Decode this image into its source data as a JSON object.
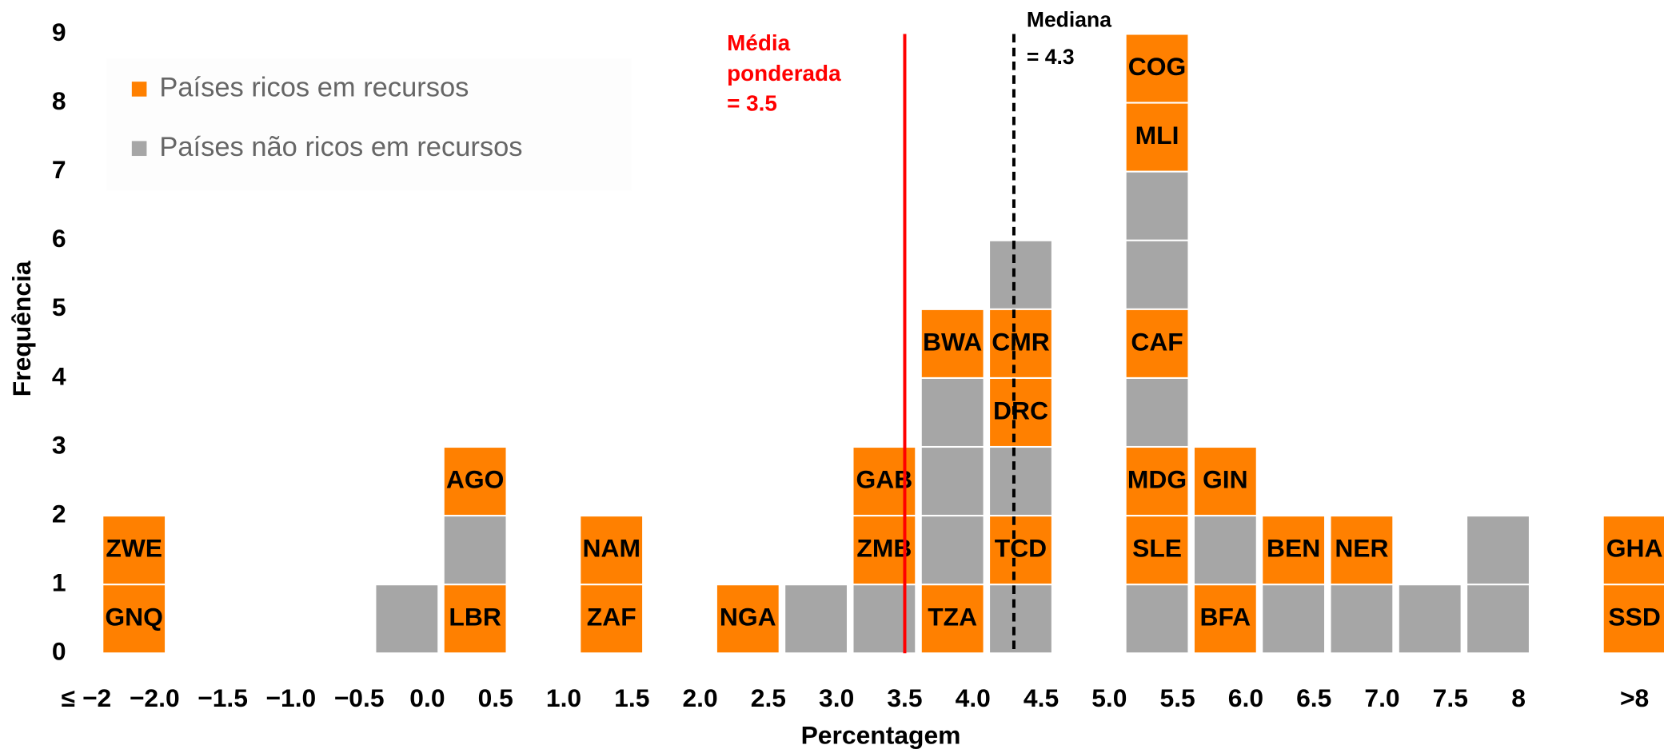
{
  "chart_data": {
    "type": "unitstack",
    "xlabel": "Percentagem",
    "ylabel": "Frequência",
    "series": [
      {
        "name": "Países ricos em recursos",
        "color": "#ff8000"
      },
      {
        "name": "Países não ricos em recursos",
        "color": "#a6a6a6"
      }
    ],
    "legend": "upper left",
    "columns": [
      {
        "x": -2.15,
        "cells": [
          {
            "series": 0,
            "label": "GNQ"
          },
          {
            "series": 0,
            "label": "ZWE"
          }
        ]
      },
      {
        "x": -0.15,
        "cells": [
          {
            "series": 1
          }
        ]
      },
      {
        "x": 0.35,
        "cells": [
          {
            "series": 0,
            "label": "LBR"
          },
          {
            "series": 1
          },
          {
            "series": 0,
            "label": "AGO"
          }
        ]
      },
      {
        "x": 1.35,
        "cells": [
          {
            "series": 0,
            "label": "ZAF"
          },
          {
            "series": 0,
            "label": "NAM"
          }
        ]
      },
      {
        "x": 2.35,
        "cells": [
          {
            "series": 0,
            "label": "NGA"
          }
        ]
      },
      {
        "x": 2.85,
        "cells": [
          {
            "series": 1
          }
        ]
      },
      {
        "x": 3.35,
        "cells": [
          {
            "series": 1
          },
          {
            "series": 0,
            "label": "ZMB"
          },
          {
            "series": 0,
            "label": "GAB"
          }
        ]
      },
      {
        "x": 3.85,
        "cells": [
          {
            "series": 0,
            "label": "TZA"
          },
          {
            "series": 1
          },
          {
            "series": 1
          },
          {
            "series": 1
          },
          {
            "series": 0,
            "label": "BWA"
          }
        ]
      },
      {
        "x": 4.35,
        "cells": [
          {
            "series": 1
          },
          {
            "series": 0,
            "label": "TCD"
          },
          {
            "series": 1
          },
          {
            "series": 0,
            "label": "DRC"
          },
          {
            "series": 0,
            "label": "CMR"
          },
          {
            "series": 1
          }
        ]
      },
      {
        "x": 5.35,
        "cells": [
          {
            "series": 1
          },
          {
            "series": 0,
            "label": "SLE"
          },
          {
            "series": 0,
            "label": "MDG"
          },
          {
            "series": 1
          },
          {
            "series": 0,
            "label": "CAF"
          },
          {
            "series": 1
          },
          {
            "series": 1
          },
          {
            "series": 0,
            "label": "MLI"
          },
          {
            "series": 0,
            "label": "COG"
          }
        ]
      },
      {
        "x": 5.85,
        "cells": [
          {
            "series": 0,
            "label": "BFA"
          },
          {
            "series": 1
          },
          {
            "series": 0,
            "label": "GIN"
          }
        ]
      },
      {
        "x": 6.35,
        "cells": [
          {
            "series": 1
          },
          {
            "series": 0,
            "label": "BEN"
          }
        ]
      },
      {
        "x": 6.85,
        "cells": [
          {
            "series": 1
          },
          {
            "series": 0,
            "label": "NER"
          }
        ]
      },
      {
        "x": 7.35,
        "cells": [
          {
            "series": 1
          }
        ]
      },
      {
        "x": 7.85,
        "cells": [
          {
            "series": 1
          },
          {
            "series": 1
          }
        ]
      },
      {
        "x": 8.85,
        "cells": [
          {
            "series": 0,
            "label": "SSD"
          },
          {
            "series": 0,
            "label": "GHA"
          }
        ]
      }
    ],
    "mean": {
      "value": 3.5,
      "label": [
        "Média",
        "ponderada",
        "= 3.5"
      ],
      "color": "#ff0000"
    },
    "median": {
      "value": 4.3,
      "label": [
        "Mediana",
        "= 4.3"
      ],
      "color": "#000000"
    },
    "xlim": [
      -2.75,
      9.15
    ],
    "xticks": [
      {
        "value": -2.5,
        "label": "≤ −2"
      },
      {
        "value": -2,
        "label": "−2.0"
      },
      {
        "value": -1.5,
        "label": "−1.5"
      },
      {
        "value": -1,
        "label": "−1.0"
      },
      {
        "value": -0.5,
        "label": "−0.5"
      },
      {
        "value": 0,
        "label": "0.0"
      },
      0.5,
      {
        "value": 1,
        "label": "1.0"
      },
      1.5,
      {
        "value": 2,
        "label": "2.0"
      },
      2.5,
      {
        "value": 3,
        "label": "3.0"
      },
      3.5,
      {
        "value": 4,
        "label": "4.0"
      },
      4.5,
      {
        "value": 5,
        "label": "5.0"
      },
      5.5,
      {
        "value": 6,
        "label": "6.0"
      },
      6.5,
      {
        "value": 7,
        "label": "7.0"
      },
      7.5,
      8,
      {
        "value": 8.85,
        "label": ">8"
      }
    ],
    "ylim": [
      0,
      9
    ],
    "yticks": [
      0,
      1,
      2,
      3,
      4,
      5,
      6,
      7,
      8,
      9
    ]
  }
}
